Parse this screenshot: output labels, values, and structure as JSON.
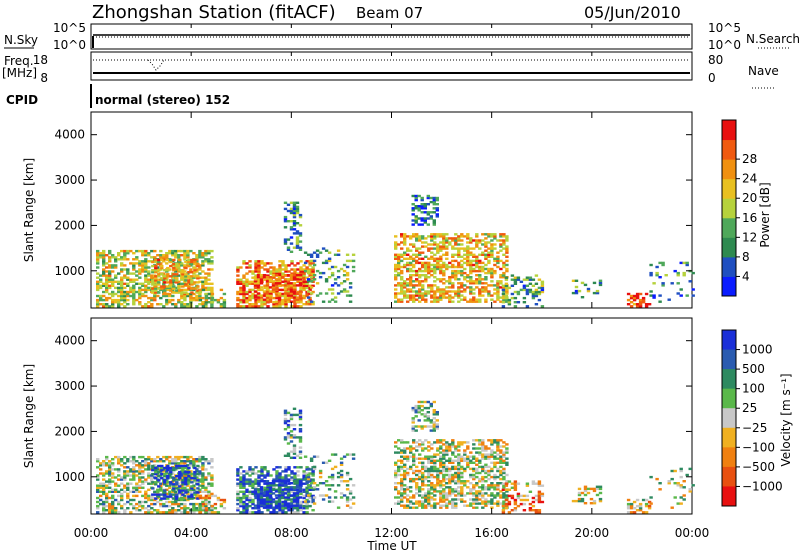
{
  "header": {
    "title": "Zhongshan Station (fitACF)",
    "beam": "Beam 07",
    "date": "05/Jun/2010"
  },
  "top_panels": {
    "nsky_label": "N.Sky",
    "nsky_ticks": [
      "10^5",
      "10^0"
    ],
    "nsearch_label": "N.Search",
    "nsearch_ticks": [
      "10^5",
      "10^0"
    ],
    "freq_label": "Freq.",
    "freq_unit": "[MHz]",
    "freq_ticks": [
      "18",
      "8"
    ],
    "nave_label": "Nave",
    "nave_ticks": [
      "80",
      "0"
    ],
    "cpid_label": "CPID",
    "cpid_text": "normal (stereo) 152"
  },
  "chart_data": [
    {
      "type": "heatmap",
      "name": "power",
      "ylabel": "Slant Range [km]",
      "yticks": [
        "1000",
        "2000",
        "3000",
        "4000"
      ],
      "ylim": [
        180,
        4500
      ],
      "xlim_hours": [
        0,
        24
      ],
      "colorbar_label": "Power [dB]",
      "colorbar_ticks": [
        "4",
        "8",
        "12",
        "16",
        "20",
        "24",
        "28"
      ],
      "colors": [
        "#0a1cff",
        "#1f4fc0",
        "#2e8a50",
        "#4fa85a",
        "#b6d23c",
        "#e8c020",
        "#f09010",
        "#f05a10",
        "#e81010"
      ]
    },
    {
      "type": "heatmap",
      "name": "velocity",
      "ylabel": "Slant Range [km]",
      "yticks": [
        "1000",
        "2000",
        "3000",
        "4000"
      ],
      "ylim": [
        180,
        4500
      ],
      "xlim_hours": [
        0,
        24
      ],
      "colorbar_label": "Velocity [m s⁻¹]",
      "colorbar_ticks": [
        "1000",
        "500",
        "100",
        "25",
        "−25",
        "−100",
        "−500",
        "−1000"
      ],
      "colors": [
        "#1a2fd8",
        "#2a5bb0",
        "#2e8a60",
        "#5ab84a",
        "#c8c8c8",
        "#f0b020",
        "#f08010",
        "#e85010",
        "#e81010"
      ]
    }
  ],
  "xaxis": {
    "ticks": [
      "00:00",
      "04:00",
      "08:00",
      "12:00",
      "16:00",
      "20:00",
      "00:00"
    ],
    "label": "Time UT"
  }
}
